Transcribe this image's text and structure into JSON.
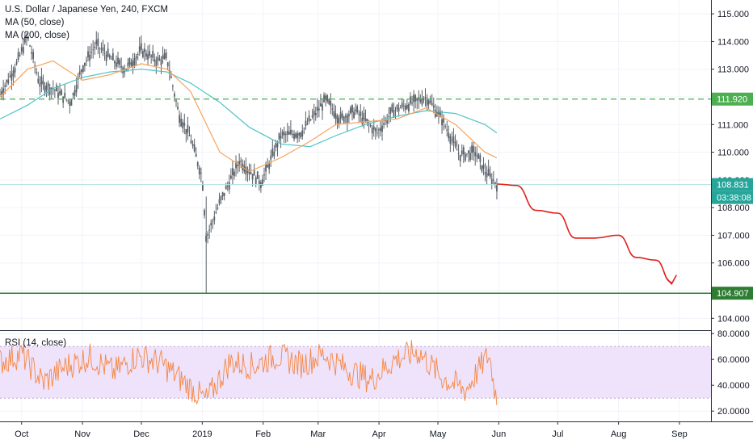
{
  "legend": {
    "title": "U.S. Dollar / Japanese Yen, 240, FXCM",
    "ma50": "MA (50, close)",
    "ma200": "MA (200, close)",
    "rsi": "RSI (14, close)"
  },
  "colors": {
    "ma50": "#f7a35c",
    "ma200": "#4fc3c8",
    "candle": "#5a6068",
    "resistance": "#4caf50",
    "support": "#2e7d32",
    "last_price": "#26a69a",
    "forecast": "#e0201c",
    "rsi_line": "#f58742",
    "rsi_band": "#efe2fb"
  },
  "price_labels": {
    "resistance": "111.920",
    "last": "108.831",
    "countdown": "03:38:08",
    "support": "104.907"
  },
  "chart_data": {
    "type": "line",
    "title": "U.S. Dollar / Japanese Yen, 240, FXCM",
    "y_axis_ticks": [
      "115.000",
      "114.000",
      "113.000",
      "112.000",
      "111.000",
      "110.000",
      "109.000",
      "108.000",
      "107.000",
      "106.000",
      "105.000",
      "104.000"
    ],
    "x_axis_ticks": [
      "Oct",
      "Nov",
      "Dec",
      "2019",
      "Feb",
      "Mar",
      "Apr",
      "May",
      "Jun",
      "Jul",
      "Aug",
      "Sep"
    ],
    "ylim": [
      103.6,
      115.5
    ],
    "series": [
      {
        "name": "U.S. Dollar / Japanese Yen",
        "key": "price",
        "x": [
          "2018-09-20",
          "2018-09-28",
          "2018-10-04",
          "2018-10-10",
          "2018-10-17",
          "2018-10-26",
          "2018-11-01",
          "2018-11-08",
          "2018-11-15",
          "2018-11-23",
          "2018-12-01",
          "2018-12-09",
          "2018-12-14",
          "2018-12-20",
          "2018-12-26",
          "2019-01-01",
          "2019-01-03",
          "2019-01-10",
          "2019-01-20",
          "2019-01-31",
          "2019-02-10",
          "2019-02-20",
          "2019-03-05",
          "2019-03-12",
          "2019-03-20",
          "2019-03-31",
          "2019-04-08",
          "2019-04-15",
          "2019-04-25",
          "2019-05-03",
          "2019-05-12",
          "2019-05-20",
          "2019-05-25",
          "2019-05-31"
        ],
        "values": [
          112.1,
          113.1,
          114.2,
          112.5,
          112.3,
          111.8,
          113.1,
          113.9,
          113.4,
          113.0,
          113.7,
          113.3,
          113.4,
          111.4,
          110.5,
          109.1,
          106.9,
          108.2,
          109.7,
          108.9,
          110.6,
          110.7,
          111.9,
          111.2,
          111.5,
          110.7,
          111.5,
          111.7,
          112.0,
          111.2,
          109.9,
          110.0,
          109.3,
          108.85
        ]
      },
      {
        "name": "MA (50, close)",
        "key": "ma50",
        "x": [
          "2018-09-20",
          "2018-10-04",
          "2018-10-17",
          "2018-11-01",
          "2018-11-15",
          "2018-12-01",
          "2018-12-14",
          "2018-12-26",
          "2019-01-10",
          "2019-01-25",
          "2019-02-10",
          "2019-02-25",
          "2019-03-10",
          "2019-03-25",
          "2019-04-10",
          "2019-04-25",
          "2019-05-10",
          "2019-05-25",
          "2019-05-31"
        ],
        "values": [
          112.0,
          113.0,
          113.3,
          112.6,
          112.8,
          113.2,
          113.0,
          112.2,
          110.0,
          109.3,
          109.8,
          110.4,
          111.0,
          111.1,
          111.2,
          111.6,
          111.0,
          110.0,
          109.8
        ]
      },
      {
        "name": "MA (200, close)",
        "key": "ma200",
        "x": [
          "2018-09-20",
          "2018-10-04",
          "2018-10-17",
          "2018-11-01",
          "2018-11-15",
          "2018-12-01",
          "2018-12-14",
          "2018-12-26",
          "2019-01-10",
          "2019-01-25",
          "2019-02-10",
          "2019-02-25",
          "2019-03-10",
          "2019-03-25",
          "2019-04-10",
          "2019-04-25",
          "2019-05-10",
          "2019-05-25",
          "2019-05-31"
        ],
        "values": [
          111.2,
          111.7,
          112.3,
          112.7,
          112.9,
          113.0,
          112.9,
          112.5,
          111.8,
          110.9,
          110.3,
          110.2,
          110.6,
          111.0,
          111.3,
          111.5,
          111.4,
          111.0,
          110.7
        ]
      },
      {
        "name": "Forecast",
        "key": "forecast",
        "x": [
          "2019-05-31",
          "2019-06-10",
          "2019-06-20",
          "2019-07-01",
          "2019-07-10",
          "2019-07-20",
          "2019-08-01",
          "2019-08-10",
          "2019-08-20",
          "2019-08-28"
        ],
        "values": [
          108.85,
          108.8,
          107.9,
          107.8,
          106.9,
          106.9,
          107.0,
          106.2,
          106.1,
          105.3
        ]
      }
    ],
    "horizontal_lines": [
      {
        "label": "111.920",
        "value": 111.92,
        "style": "dashed"
      },
      {
        "label": "104.907",
        "value": 104.907,
        "style": "solid"
      },
      {
        "label": "108.831",
        "value": 108.831,
        "style": "thin"
      }
    ],
    "rsi": {
      "name": "RSI (14, close)",
      "y_axis_ticks": [
        "80.0000",
        "60.0000",
        "40.0000",
        "20.0000"
      ],
      "ylim": [
        12,
        82
      ],
      "band": [
        30,
        70
      ],
      "x": [
        "2018-09-20",
        "2018-10-01",
        "2018-10-12",
        "2018-10-24",
        "2018-11-05",
        "2018-11-17",
        "2018-11-29",
        "2018-12-11",
        "2018-12-23",
        "2019-01-03",
        "2019-01-15",
        "2019-01-27",
        "2019-02-08",
        "2019-02-20",
        "2019-03-04",
        "2019-03-16",
        "2019-03-28",
        "2019-04-09",
        "2019-04-21",
        "2019-05-03",
        "2019-05-15",
        "2019-05-27",
        "2019-05-31"
      ],
      "values": [
        58,
        64,
        42,
        55,
        62,
        50,
        63,
        57,
        42,
        28,
        58,
        55,
        63,
        56,
        64,
        52,
        44,
        60,
        66,
        46,
        36,
        64,
        28
      ]
    }
  }
}
